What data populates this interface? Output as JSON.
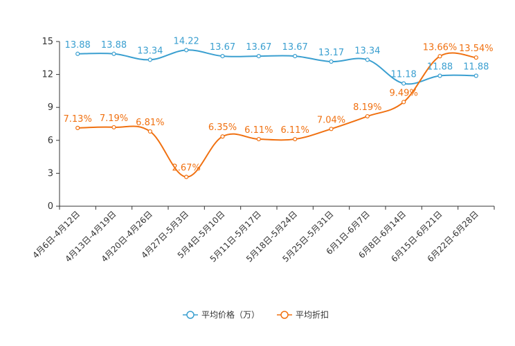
{
  "chart_data": {
    "type": "line",
    "title": "",
    "xlabel": "",
    "ylabel": "",
    "ylim": [
      0,
      15
    ],
    "yticks": [
      "0",
      "3",
      "6",
      "9",
      "12",
      "15"
    ],
    "categories": [
      "4月6日-4月12日",
      "4月13日-4月19日",
      "4月20日-4月26日",
      "4月27日-5月3日",
      "5月4日-5月10日",
      "5月11日-5月17日",
      "5月18日-5月24日",
      "5月25日-5月31日",
      "6月1日-6月7日",
      "6月8日-6月14日",
      "6月15日-6月21日",
      "6月22日-6月28日"
    ],
    "series": [
      {
        "name": "平均价格（万）",
        "color": "#3a9fd0",
        "values": [
          13.88,
          13.88,
          13.34,
          14.22,
          13.67,
          13.67,
          13.67,
          13.17,
          13.34,
          11.18,
          11.88,
          11.88
        ],
        "labels": [
          "13.88",
          "13.88",
          "13.34",
          "14.22",
          "13.67",
          "13.67",
          "13.67",
          "13.17",
          "13.34",
          "11.18",
          "11.88",
          "11.88"
        ]
      },
      {
        "name": "平均折扣",
        "color": "#f07010",
        "values": [
          7.13,
          7.19,
          6.81,
          2.67,
          6.35,
          6.11,
          6.11,
          7.04,
          8.19,
          9.49,
          13.66,
          13.54
        ],
        "labels": [
          "7.13%",
          "7.19%",
          "6.81%",
          "2.67%",
          "6.35%",
          "6.11%",
          "6.11%",
          "7.04%",
          "8.19%",
          "9.49%",
          "13.66%",
          "13.54%"
        ]
      }
    ],
    "legend_position": "bottom-center",
    "grid": false
  }
}
